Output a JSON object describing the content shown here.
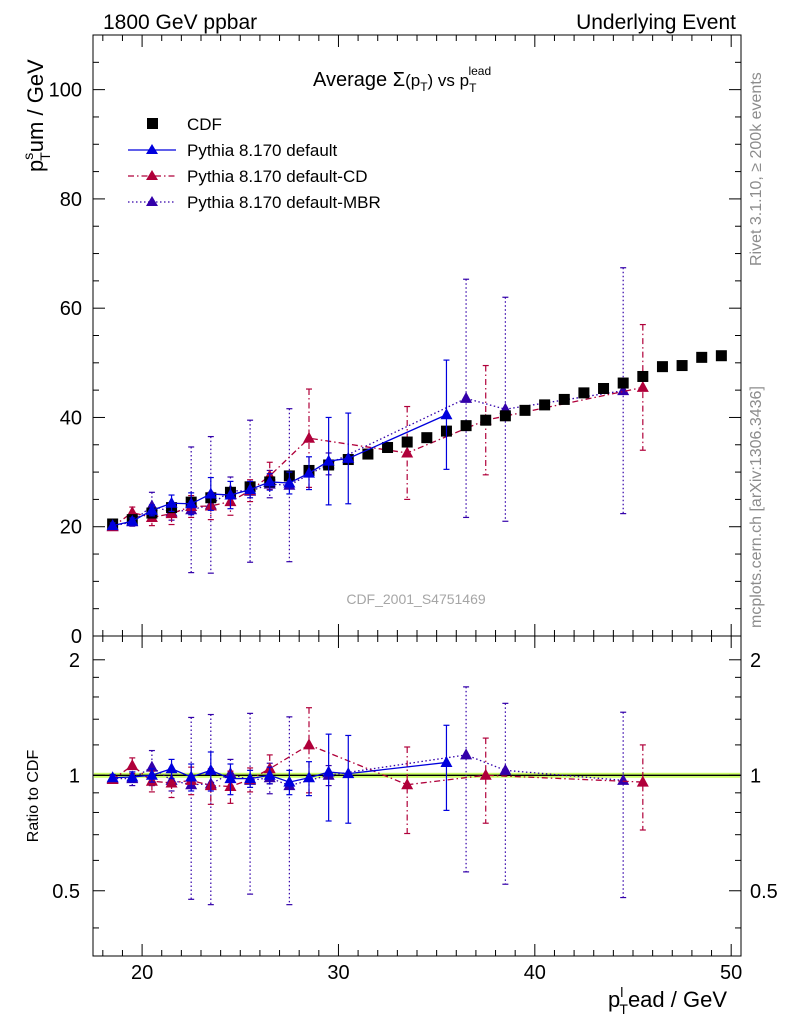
{
  "header": {
    "left": "1800 GeV ppbar",
    "right": "Underlying Event"
  },
  "side_labels": {
    "rivet": "Rivet 3.1.10, ≥ 200k events",
    "mcplots": "mcplots.cern.ch [arXiv:1306.3436]"
  },
  "watermark": "CDF_2001_S4751469",
  "colors": {
    "cdf": "#000000",
    "default": "#0000dd",
    "default_cd": "#b0003a",
    "default_mbr": "#3300aa",
    "ratio_band": "#ccff66",
    "axis": "#000000",
    "side_text": "#8c8c8c"
  },
  "chart_data": [
    {
      "type": "scatter",
      "title": "Average Σ(p_T) vs p_T^lead",
      "title_parts": {
        "prefix": "Average ",
        "sigma": "Σ",
        "open": "(p",
        "T1": "T",
        "close": ")",
        "vs": " vs p",
        "T2": "T",
        "lead": "lead"
      },
      "ylabel_parts": {
        "p": "p",
        "sup": "s",
        "sub": "T",
        "rest": "um / GeV"
      },
      "xlim": [
        17.5,
        50.5
      ],
      "ylim": [
        0,
        110
      ],
      "yticks": [
        0,
        20,
        40,
        60,
        80,
        100
      ],
      "ytick_labels": [
        "0",
        "20",
        "40",
        "60",
        "80",
        "100"
      ],
      "legend_position": "top-left",
      "series": [
        {
          "name": "CDF",
          "key": "cdf",
          "style": "square",
          "x": [
            18.5,
            19.5,
            20.5,
            21.5,
            22.5,
            23.5,
            24.5,
            25.5,
            26.5,
            27.5,
            28.5,
            29.5,
            30.5,
            31.5,
            32.5,
            33.5,
            34.5,
            35.5,
            36.5,
            37.5,
            38.5,
            39.5,
            40.5,
            41.5,
            42.5,
            43.5,
            44.5,
            45.5,
            46.5,
            47.5,
            48.5,
            49.5
          ],
          "y": [
            20.5,
            21.3,
            22.5,
            23.5,
            24.5,
            25.3,
            26.3,
            27.3,
            28.2,
            29.3,
            30.3,
            31.3,
            32.3,
            33.3,
            34.5,
            35.5,
            36.3,
            37.5,
            38.5,
            39.5,
            40.3,
            41.3,
            42.3,
            43.3,
            44.5,
            45.3,
            46.3,
            47.5,
            49.3,
            49.5,
            51.0,
            51.3
          ]
        },
        {
          "name": "Pythia 8.170 default",
          "key": "default",
          "style": "solid",
          "x": [
            18.5,
            19.5,
            20.5,
            21.5,
            22.5,
            23.5,
            24.5,
            25.5,
            26.5,
            27.5,
            28.5,
            29.5,
            30.5,
            35.5
          ],
          "y": [
            20.2,
            21.0,
            23.0,
            24.3,
            24.2,
            26.0,
            25.8,
            26.8,
            28.2,
            28.0,
            29.8,
            32.0,
            32.5,
            40.5
          ],
          "err": [
            0.5,
            0.6,
            1.0,
            1.5,
            2.0,
            3.0,
            2.5,
            1.5,
            1.5,
            2.0,
            3.0,
            8.0,
            8.3,
            10.0
          ]
        },
        {
          "name": "Pythia 8.170 default-CD",
          "key": "default_cd",
          "style": "dashdot",
          "x": [
            18.5,
            19.5,
            20.5,
            21.5,
            22.5,
            23.5,
            24.5,
            25.5,
            26.5,
            28.5,
            33.5,
            37.5,
            45.5
          ],
          "y": [
            20.0,
            22.6,
            21.7,
            22.4,
            23.7,
            23.8,
            24.6,
            26.6,
            29.3,
            36.2,
            33.5,
            39.5,
            45.5
          ],
          "err": [
            0.5,
            1.0,
            1.5,
            2.0,
            2.0,
            2.5,
            2.5,
            2.0,
            2.5,
            9.0,
            8.5,
            10.0,
            11.5
          ]
        },
        {
          "name": "Pythia 8.170 default-MBR",
          "key": "default_mbr",
          "style": "dotted",
          "x": [
            18.5,
            19.5,
            20.5,
            21.5,
            22.5,
            23.5,
            24.5,
            25.5,
            26.5,
            27.5,
            29.5,
            36.5,
            38.5,
            44.5
          ],
          "y": [
            20.1,
            20.9,
            23.8,
            22.7,
            23.1,
            24.0,
            26.6,
            26.5,
            27.8,
            27.6,
            31.5,
            43.5,
            41.5,
            44.9
          ],
          "err": [
            0.5,
            0.8,
            2.5,
            1.5,
            11.5,
            12.5,
            2.5,
            13.0,
            2.5,
            14.0,
            2.0,
            21.8,
            20.5,
            22.5
          ]
        }
      ]
    },
    {
      "type": "scatter",
      "title": "",
      "ylabel": "Ratio to CDF",
      "xlabel_parts": {
        "p": "p",
        "sup": "l",
        "sub": "T",
        "rest": "ead / GeV"
      },
      "xlim": [
        17.5,
        50.5
      ],
      "xticks": [
        20,
        30,
        40,
        50
      ],
      "xtick_labels": [
        "20",
        "30",
        "40",
        "50"
      ],
      "ylim": [
        0.338,
        2.307
      ],
      "yscale": "log",
      "yticks": [
        0.5,
        1,
        2
      ],
      "ytick_labels_left": [
        "0.5",
        "1",
        "2"
      ],
      "ytick_labels_right": [
        "0.5",
        "1",
        "2"
      ],
      "reference": 1,
      "band_halfwidth": 0.015,
      "series": [
        {
          "name": "Pythia 8.170 default",
          "key": "default",
          "style": "solid",
          "x": [
            18.5,
            19.5,
            20.5,
            21.5,
            22.5,
            23.5,
            24.5,
            25.5,
            26.5,
            27.5,
            28.5,
            29.5,
            30.5,
            35.5
          ],
          "y": [
            0.985,
            0.99,
            1.0,
            1.04,
            0.99,
            1.03,
            0.98,
            0.98,
            1.0,
            0.96,
            0.985,
            1.02,
            1.01,
            1.08
          ],
          "err": [
            0.02,
            0.03,
            0.04,
            0.06,
            0.08,
            0.12,
            0.09,
            0.05,
            0.05,
            0.07,
            0.1,
            0.26,
            0.26,
            0.27
          ]
        },
        {
          "name": "Pythia 8.170 default-CD",
          "key": "default_cd",
          "style": "dashdot",
          "x": [
            18.5,
            19.5,
            20.5,
            21.5,
            22.5,
            23.5,
            24.5,
            25.5,
            26.5,
            28.5,
            33.5,
            37.5,
            45.5
          ],
          "y": [
            0.975,
            1.06,
            0.965,
            0.955,
            0.97,
            0.94,
            0.935,
            0.975,
            1.04,
            1.2,
            0.945,
            1.0,
            0.96
          ],
          "err": [
            0.02,
            0.05,
            0.06,
            0.08,
            0.08,
            0.1,
            0.09,
            0.07,
            0.09,
            0.3,
            0.24,
            0.25,
            0.24
          ]
        },
        {
          "name": "Pythia 8.170 default-MBR",
          "key": "default_mbr",
          "style": "dotted",
          "x": [
            18.5,
            19.5,
            20.5,
            21.5,
            22.5,
            23.5,
            24.5,
            25.5,
            26.5,
            27.5,
            29.5,
            36.5,
            38.5,
            44.5
          ],
          "y": [
            0.98,
            0.98,
            1.05,
            0.97,
            0.945,
            0.95,
            1.01,
            0.97,
            0.985,
            0.94,
            1.0,
            1.13,
            1.03,
            0.97
          ],
          "err": [
            0.02,
            0.04,
            0.11,
            0.06,
            0.47,
            0.49,
            0.09,
            0.48,
            0.09,
            0.48,
            0.06,
            0.57,
            0.51,
            0.49
          ]
        }
      ]
    }
  ]
}
